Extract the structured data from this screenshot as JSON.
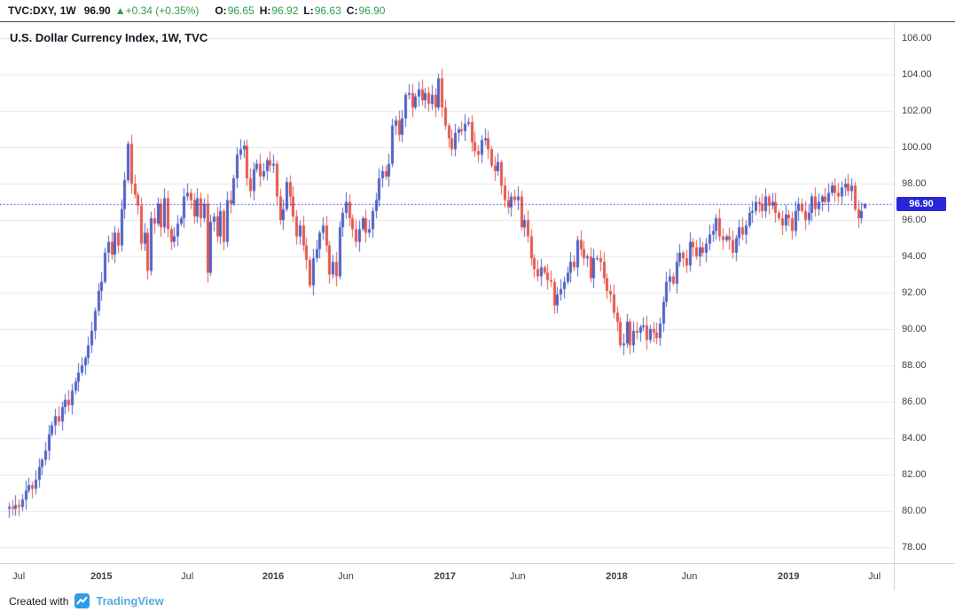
{
  "topbar": {
    "symbol": "TVC:DXY,",
    "interval": "1W",
    "price": "96.90",
    "arrow": "▲",
    "change": "+0.34 (+0.35%)",
    "open_label": "O:",
    "open": "96.65",
    "high_label": "H:",
    "high": "96.92",
    "low_label": "L:",
    "low": "96.63",
    "close_label": "C:",
    "close": "96.90",
    "up_color": "#2e9e4c"
  },
  "attribution": {
    "prefix": "Created with",
    "brand": "TradingView",
    "brand_color": "#57abdf",
    "logo_color": "#2d9cea"
  },
  "chart_data": {
    "type": "candlestick",
    "title": "U.S. Dollar Currency Index, 1W, TVC",
    "symbol": "TVC:DXY",
    "interval": "1W",
    "up_color": "#4f61c5",
    "down_color": "#e4584e",
    "grid_color": "#e8e8ec",
    "background": "#ffffff",
    "y_min": 77.1,
    "y_max": 106.9,
    "y_ticks": [
      "106.00",
      "104.00",
      "102.00",
      "100.00",
      "98.00",
      "96.00",
      "94.00",
      "92.00",
      "90.00",
      "88.00",
      "86.00",
      "84.00",
      "82.00",
      "80.00",
      "78.00"
    ],
    "x_labels": [
      {
        "text": "Jul",
        "week": 3,
        "year": false
      },
      {
        "text": "2015",
        "week": 28,
        "year": true
      },
      {
        "text": "Jul",
        "week": 54,
        "year": false
      },
      {
        "text": "2016",
        "week": 80,
        "year": true
      },
      {
        "text": "Jun",
        "week": 102,
        "year": false
      },
      {
        "text": "2017",
        "week": 132,
        "year": true
      },
      {
        "text": "Jun",
        "week": 154,
        "year": false
      },
      {
        "text": "2018",
        "week": 184,
        "year": true
      },
      {
        "text": "Jun",
        "week": 206,
        "year": false
      },
      {
        "text": "2019",
        "week": 236,
        "year": true
      },
      {
        "text": "Jul",
        "week": 262,
        "year": false
      }
    ],
    "price_line": {
      "value": 96.9,
      "label": "96.90",
      "color": "#2727d8"
    },
    "last_candle": {
      "open": 96.65,
      "high": 96.92,
      "low": 96.63,
      "close": 96.9
    },
    "closes": [
      80.2,
      80.1,
      80.3,
      80.2,
      80.6,
      81.1,
      81.4,
      81.2,
      81.7,
      82.4,
      82.8,
      83.3,
      84.2,
      84.7,
      85.2,
      84.9,
      85.7,
      86.1,
      85.8,
      86.6,
      87.1,
      87.6,
      88.0,
      88.4,
      89.1,
      89.9,
      91.0,
      92.1,
      92.6,
      94.2,
      94.8,
      94.1,
      95.3,
      94.6,
      96.6,
      98.2,
      100.2,
      98.0,
      97.4,
      96.8,
      94.7,
      95.3,
      93.2,
      96.1,
      95.8,
      96.9,
      95.6,
      97.2,
      95.5,
      94.8,
      95.1,
      95.8,
      96.1,
      97.3,
      97.5,
      97.1,
      96.2,
      97.2,
      96.1,
      96.9,
      93.1,
      95.9,
      96.2,
      95.1,
      96.5,
      94.8,
      97.1,
      96.9,
      98.3,
      99.6,
      99.9,
      100.1,
      98.3,
      97.6,
      98.8,
      99.1,
      98.4,
      98.7,
      99.3,
      99.0,
      99.1,
      97.3,
      96.0,
      96.6,
      98.1,
      97.3,
      96.2,
      95.1,
      95.7,
      94.6,
      93.8,
      92.4,
      93.9,
      94.4,
      95.3,
      95.7,
      94.6,
      93.0,
      93.7,
      92.9,
      95.6,
      96.4,
      97.0,
      96.1,
      95.5,
      94.8,
      95.5,
      96.1,
      95.3,
      95.5,
      96.5,
      97.1,
      98.3,
      98.7,
      98.4,
      99.1,
      101.2,
      101.5,
      100.7,
      101.6,
      102.9,
      103.0,
      102.2,
      102.8,
      103.2,
      102.6,
      103.0,
      102.4,
      102.9,
      102.2,
      103.8,
      102.2,
      101.2,
      100.5,
      99.9,
      100.8,
      101.0,
      100.9,
      101.3,
      101.4,
      100.3,
      99.8,
      99.6,
      100.4,
      100.5,
      99.9,
      99.0,
      98.7,
      99.2,
      97.9,
      97.1,
      96.7,
      97.3,
      97.1,
      97.3,
      95.6,
      96.0,
      95.1,
      93.9,
      93.3,
      92.9,
      93.4,
      93.1,
      92.7,
      92.6,
      91.3,
      91.9,
      92.2,
      92.6,
      93.1,
      93.7,
      93.4,
      94.9,
      94.4,
      93.9,
      94.0,
      92.8,
      93.9,
      93.9,
      93.7,
      92.8,
      92.1,
      91.9,
      90.9,
      90.4,
      89.1,
      89.2,
      90.4,
      89.1,
      89.9,
      89.8,
      90.1,
      90.2,
      89.4,
      90.0,
      89.8,
      89.5,
      90.3,
      91.5,
      92.6,
      92.9,
      92.5,
      93.7,
      94.2,
      93.9,
      93.5,
      94.8,
      94.5,
      94.0,
      94.5,
      94.2,
      94.7,
      95.2,
      95.4,
      96.1,
      95.1,
      94.9,
      95.1,
      94.9,
      94.2,
      95.0,
      95.6,
      95.2,
      95.7,
      96.4,
      96.5,
      97.0,
      96.9,
      96.5,
      97.3,
      96.8,
      97.0,
      96.4,
      96.1,
      95.7,
      96.3,
      96.1,
      95.4,
      96.5,
      96.9,
      96.5,
      96.0,
      96.4,
      97.3,
      96.6,
      97.0,
      97.3,
      97.0,
      97.5,
      97.9,
      97.5,
      97.3,
      97.8,
      98.0,
      97.6,
      97.9,
      96.6,
      96.1,
      96.5,
      96.9
    ]
  }
}
